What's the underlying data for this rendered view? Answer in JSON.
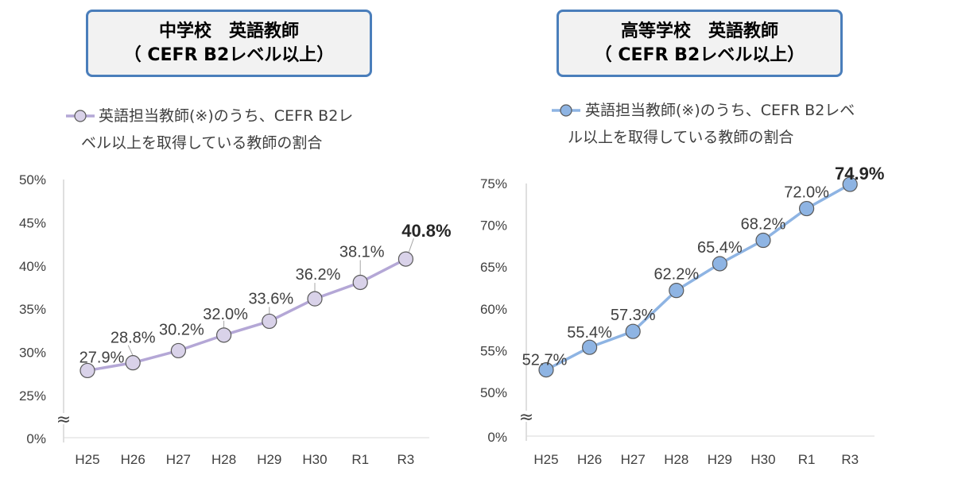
{
  "charts": [
    {
      "title_line1": "中学校　英語教師",
      "title_line2": "（ CEFR B2レベル以上）"
    },
    {
      "title_line1": "高等学校　英語教師",
      "title_line2": "（ CEFR B2レベル以上）"
    }
  ],
  "chart_data": [
    {
      "type": "line",
      "title": "中学校　英語教師（ CEFR B2レベル以上）",
      "categories": [
        "H25",
        "H26",
        "H27",
        "H28",
        "H29",
        "H30",
        "R1",
        "R3"
      ],
      "series": [
        {
          "name": "英語担当教師(※)のうち、CEFR B2レベル以上を取得している教師の割合",
          "values": [
            27.9,
            28.8,
            30.2,
            32.0,
            33.6,
            36.2,
            38.1,
            40.8
          ],
          "labels": [
            "27.9%",
            "28.8%",
            "30.2%",
            "32.0%",
            "33.6%",
            "36.2%",
            "38.1%",
            "40.8%"
          ]
        }
      ],
      "y_ticks": [
        "0%",
        "25%",
        "30%",
        "35%",
        "40%",
        "45%",
        "50%"
      ],
      "ylim": [
        25,
        50
      ],
      "axis_break": true,
      "legend_lines": [
        "英語担当教師(※)のうち、CEFR B2レ",
        "ベル以上を取得している教師の割合"
      ],
      "color": "#b4a7d6",
      "marker_fill": "#d9d2e9",
      "grid": false
    },
    {
      "type": "line",
      "title": "高等学校　英語教師（ CEFR B2レベル以上）",
      "categories": [
        "H25",
        "H26",
        "H27",
        "H28",
        "H29",
        "H30",
        "R1",
        "R3"
      ],
      "series": [
        {
          "name": "英語担当教師(※)のうち、CEFR B2レベル以上を取得している教師の割合",
          "values": [
            52.7,
            55.4,
            57.3,
            62.2,
            65.4,
            68.2,
            72.0,
            74.9
          ],
          "labels": [
            "52.7%",
            "55.4%",
            "57.3%",
            "62.2%",
            "65.4%",
            "68.2%",
            "72.0%",
            "74.9%"
          ]
        }
      ],
      "y_ticks": [
        "0%",
        "50%",
        "55%",
        "60%",
        "65%",
        "70%",
        "75%"
      ],
      "ylim": [
        50,
        75
      ],
      "axis_break": true,
      "legend_lines": [
        "英語担当教師(※)のうち、CEFR B2レベ",
        "ル以上を取得している教師の割合"
      ],
      "color": "#8eb4e3",
      "marker_fill": "#8eb4e3",
      "grid": false
    }
  ]
}
